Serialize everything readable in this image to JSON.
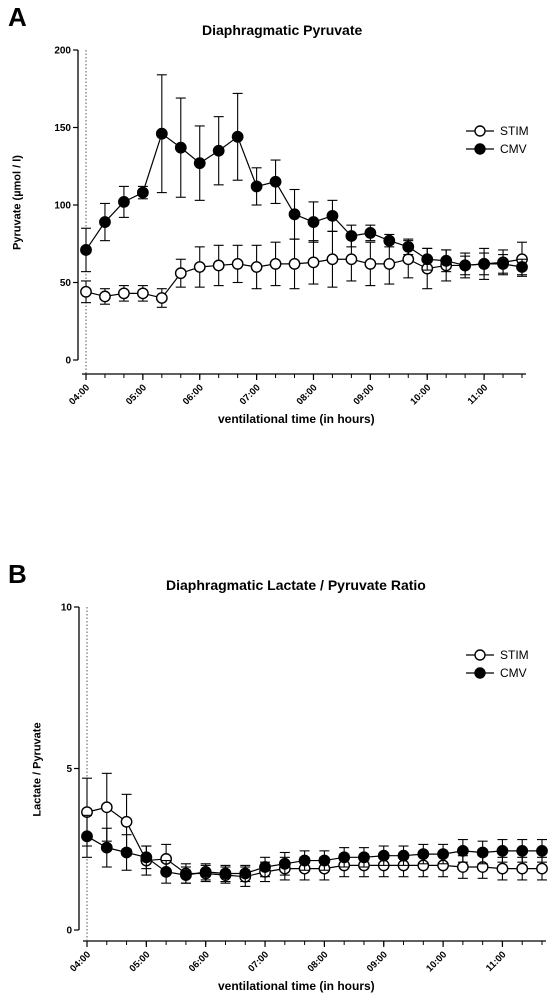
{
  "chart_data": [
    {
      "panel_label": "A",
      "type": "line",
      "title": "Diaphragmatic Pyruvate",
      "xlabel": "ventilational time (in hours)",
      "ylabel": "Pyruvate (µmol / l)",
      "ylim": [
        0,
        200
      ],
      "yticks": [
        0,
        50,
        100,
        150,
        200
      ],
      "x_tick_labels": [
        "04:00",
        "05:00",
        "06:00",
        "07:00",
        "08:00",
        "09:00",
        "10:00",
        "11:00"
      ],
      "grid": false,
      "legend_position": "top-right",
      "reference_line": "04:00",
      "x": [
        "04:00",
        "04:20",
        "04:40",
        "05:00",
        "05:20",
        "05:40",
        "06:00",
        "06:20",
        "06:40",
        "07:00",
        "07:20",
        "07:40",
        "08:00",
        "08:20",
        "08:40",
        "09:00",
        "09:20",
        "09:40",
        "10:00",
        "10:20",
        "10:40",
        "11:00",
        "11:20",
        "11:40"
      ],
      "series": [
        {
          "name": "STIM",
          "marker": "open-circle",
          "values": [
            44,
            41,
            43,
            43,
            40,
            56,
            60,
            61,
            62,
            60,
            62,
            62,
            63,
            65,
            65,
            62,
            62,
            65,
            59,
            61,
            61,
            62,
            63,
            65
          ],
          "error": [
            7,
            5,
            5,
            5,
            6,
            9,
            13,
            13,
            12,
            14,
            14,
            16,
            14,
            18,
            14,
            14,
            13,
            12,
            13,
            10,
            8,
            10,
            8,
            11
          ]
        },
        {
          "name": "CMV",
          "marker": "filled-circle",
          "values": [
            71,
            89,
            102,
            108,
            146,
            137,
            127,
            135,
            144,
            112,
            115,
            94,
            89,
            93,
            80,
            82,
            77,
            73,
            65,
            64,
            61,
            62,
            62,
            60
          ],
          "error": [
            14,
            12,
            10,
            4,
            38,
            32,
            24,
            22,
            28,
            12,
            14,
            16,
            13,
            10,
            7,
            5,
            4,
            5,
            7,
            7,
            6,
            7,
            6,
            5
          ]
        }
      ]
    },
    {
      "panel_label": "B",
      "type": "line",
      "title": "Diaphragmatic Lactate / Pyruvate Ratio",
      "xlabel": "ventilational time (in hours)",
      "ylabel": "Lactate / Pyruvate",
      "ylim": [
        0,
        10
      ],
      "yticks": [
        0,
        5,
        10
      ],
      "x_tick_labels": [
        "04:00",
        "05:00",
        "06:00",
        "07:00",
        "08:00",
        "09:00",
        "10:00",
        "11:00"
      ],
      "grid": false,
      "legend_position": "top-right",
      "reference_line": "04:00",
      "x": [
        "04:00",
        "04:20",
        "04:40",
        "05:00",
        "05:20",
        "05:40",
        "06:00",
        "06:20",
        "06:40",
        "07:00",
        "07:20",
        "07:40",
        "08:00",
        "08:20",
        "08:40",
        "09:00",
        "09:20",
        "09:40",
        "10:00",
        "10:20",
        "10:40",
        "11:00",
        "11:20",
        "11:40"
      ],
      "series": [
        {
          "name": "STIM",
          "marker": "open-circle",
          "values": [
            3.65,
            3.8,
            3.35,
            2.15,
            2.2,
            1.75,
            1.75,
            1.7,
            1.65,
            1.8,
            1.9,
            1.9,
            1.9,
            2.0,
            2.0,
            2.0,
            2.0,
            2.0,
            2.0,
            1.95,
            1.95,
            1.9,
            1.9,
            1.9
          ],
          "error": [
            1.05,
            1.05,
            0.85,
            0.45,
            0.45,
            0.3,
            0.25,
            0.25,
            0.3,
            0.3,
            0.35,
            0.35,
            0.35,
            0.35,
            0.35,
            0.35,
            0.35,
            0.35,
            0.35,
            0.35,
            0.35,
            0.35,
            0.35,
            0.35
          ]
        },
        {
          "name": "CMV",
          "marker": "filled-circle",
          "values": [
            2.9,
            2.55,
            2.4,
            2.25,
            1.8,
            1.7,
            1.8,
            1.75,
            1.75,
            1.95,
            2.05,
            2.15,
            2.15,
            2.25,
            2.25,
            2.3,
            2.3,
            2.35,
            2.35,
            2.45,
            2.4,
            2.45,
            2.45,
            2.45
          ],
          "error": [
            0.65,
            0.6,
            0.55,
            0.35,
            0.35,
            0.25,
            0.25,
            0.25,
            0.25,
            0.3,
            0.35,
            0.3,
            0.3,
            0.3,
            0.3,
            0.3,
            0.3,
            0.3,
            0.3,
            0.35,
            0.35,
            0.35,
            0.35,
            0.35
          ]
        }
      ]
    }
  ]
}
